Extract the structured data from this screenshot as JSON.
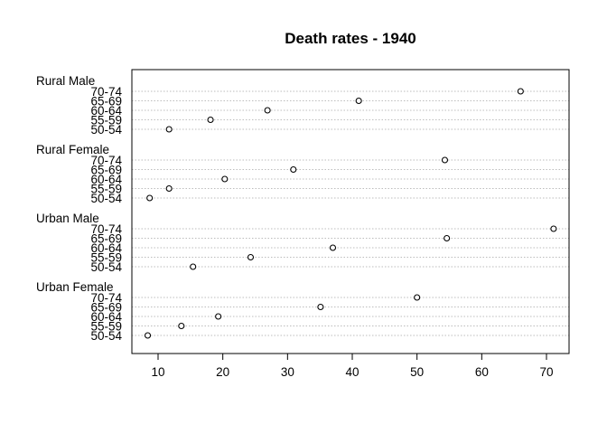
{
  "chart_data": {
    "type": "scatter",
    "subtype": "dotchart",
    "title": "Death rates - 1940",
    "xlim": [
      6,
      73
    ],
    "xticks": [
      10,
      20,
      30,
      40,
      50,
      60,
      70
    ],
    "grid": true,
    "groups": [
      {
        "name": "Rural Male",
        "categories": [
          "70-74",
          "65-69",
          "60-64",
          "55-59",
          "50-54"
        ],
        "values": [
          66.0,
          41.0,
          26.9,
          18.1,
          11.7
        ]
      },
      {
        "name": "Rural Female",
        "categories": [
          "70-74",
          "65-69",
          "60-64",
          "55-59",
          "50-54"
        ],
        "values": [
          54.3,
          30.9,
          20.3,
          11.7,
          8.7
        ]
      },
      {
        "name": "Urban Male",
        "categories": [
          "70-74",
          "65-69",
          "60-64",
          "55-59",
          "50-54"
        ],
        "values": [
          71.1,
          54.6,
          37.0,
          24.3,
          15.4
        ]
      },
      {
        "name": "Urban Female",
        "categories": [
          "70-74",
          "65-69",
          "60-64",
          "55-59",
          "50-54"
        ],
        "values": [
          50.0,
          35.1,
          19.3,
          13.6,
          8.4
        ]
      }
    ]
  }
}
